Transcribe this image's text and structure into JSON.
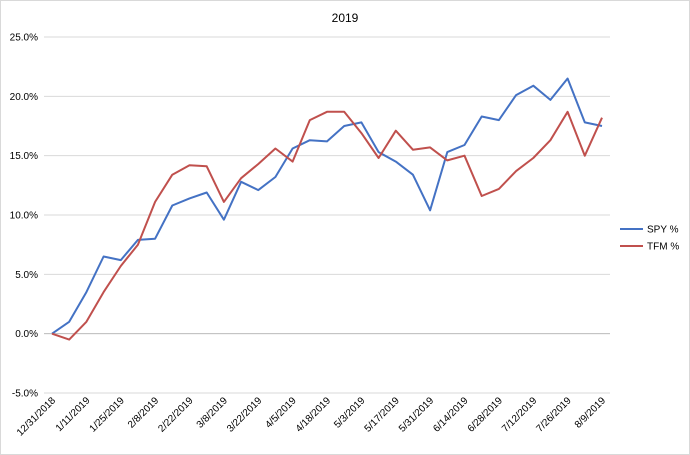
{
  "chart_data": {
    "type": "line",
    "title": "2019",
    "xlabel": "",
    "ylabel": "",
    "ylim": [
      -5,
      25
    ],
    "yticks": [
      "-5.0%",
      "0.0%",
      "5.0%",
      "10.0%",
      "15.0%",
      "20.0%",
      "25.0%"
    ],
    "ytick_values": [
      -5,
      0,
      5,
      10,
      15,
      20,
      25
    ],
    "grid": true,
    "legend_position": "right",
    "x": [
      "12/31/2018",
      "1/4/2019",
      "1/11/2019",
      "1/18/2019",
      "1/25/2019",
      "2/1/2019",
      "2/8/2019",
      "2/15/2019",
      "2/22/2019",
      "3/1/2019",
      "3/8/2019",
      "3/15/2019",
      "3/22/2019",
      "3/29/2019",
      "4/5/2019",
      "4/12/2019",
      "4/18/2019",
      "4/26/2019",
      "5/3/2019",
      "5/10/2019",
      "5/17/2019",
      "5/24/2019",
      "5/31/2019",
      "6/7/2019",
      "6/14/2019",
      "6/21/2019",
      "6/28/2019",
      "7/5/2019",
      "7/12/2019",
      "7/19/2019",
      "7/26/2019",
      "8/2/2019",
      "8/9/2019"
    ],
    "x_tick_labels": [
      "12/31/2018",
      "1/11/2019",
      "1/25/2019",
      "2/8/2019",
      "2/22/2019",
      "3/8/2019",
      "3/22/2019",
      "4/5/2019",
      "4/18/2019",
      "5/3/2019",
      "5/17/2019",
      "5/31/2019",
      "6/14/2019",
      "6/28/2019",
      "7/12/2019",
      "7/26/2019",
      "8/9/2019"
    ],
    "series": [
      {
        "name": "SPY %",
        "color": "#4472c4",
        "values": [
          0.0,
          1.0,
          3.5,
          6.5,
          6.2,
          7.9,
          8.0,
          10.8,
          11.4,
          11.9,
          9.6,
          12.8,
          12.1,
          13.2,
          15.6,
          16.3,
          16.2,
          17.5,
          17.8,
          15.3,
          14.5,
          13.4,
          10.4,
          15.3,
          15.9,
          18.3,
          18.0,
          20.1,
          20.9,
          19.7,
          21.5,
          17.8,
          17.5
        ]
      },
      {
        "name": "TFM %",
        "color": "#c0504d",
        "values": [
          0.0,
          -0.5,
          1.0,
          3.5,
          5.7,
          7.5,
          11.1,
          13.4,
          14.2,
          14.1,
          11.1,
          13.1,
          14.3,
          15.6,
          14.5,
          18.0,
          18.7,
          18.7,
          16.9,
          14.8,
          17.1,
          15.5,
          15.7,
          14.6,
          15.0,
          11.6,
          12.2,
          13.7,
          14.8,
          16.3,
          18.7,
          15.0,
          18.2
        ]
      }
    ]
  }
}
